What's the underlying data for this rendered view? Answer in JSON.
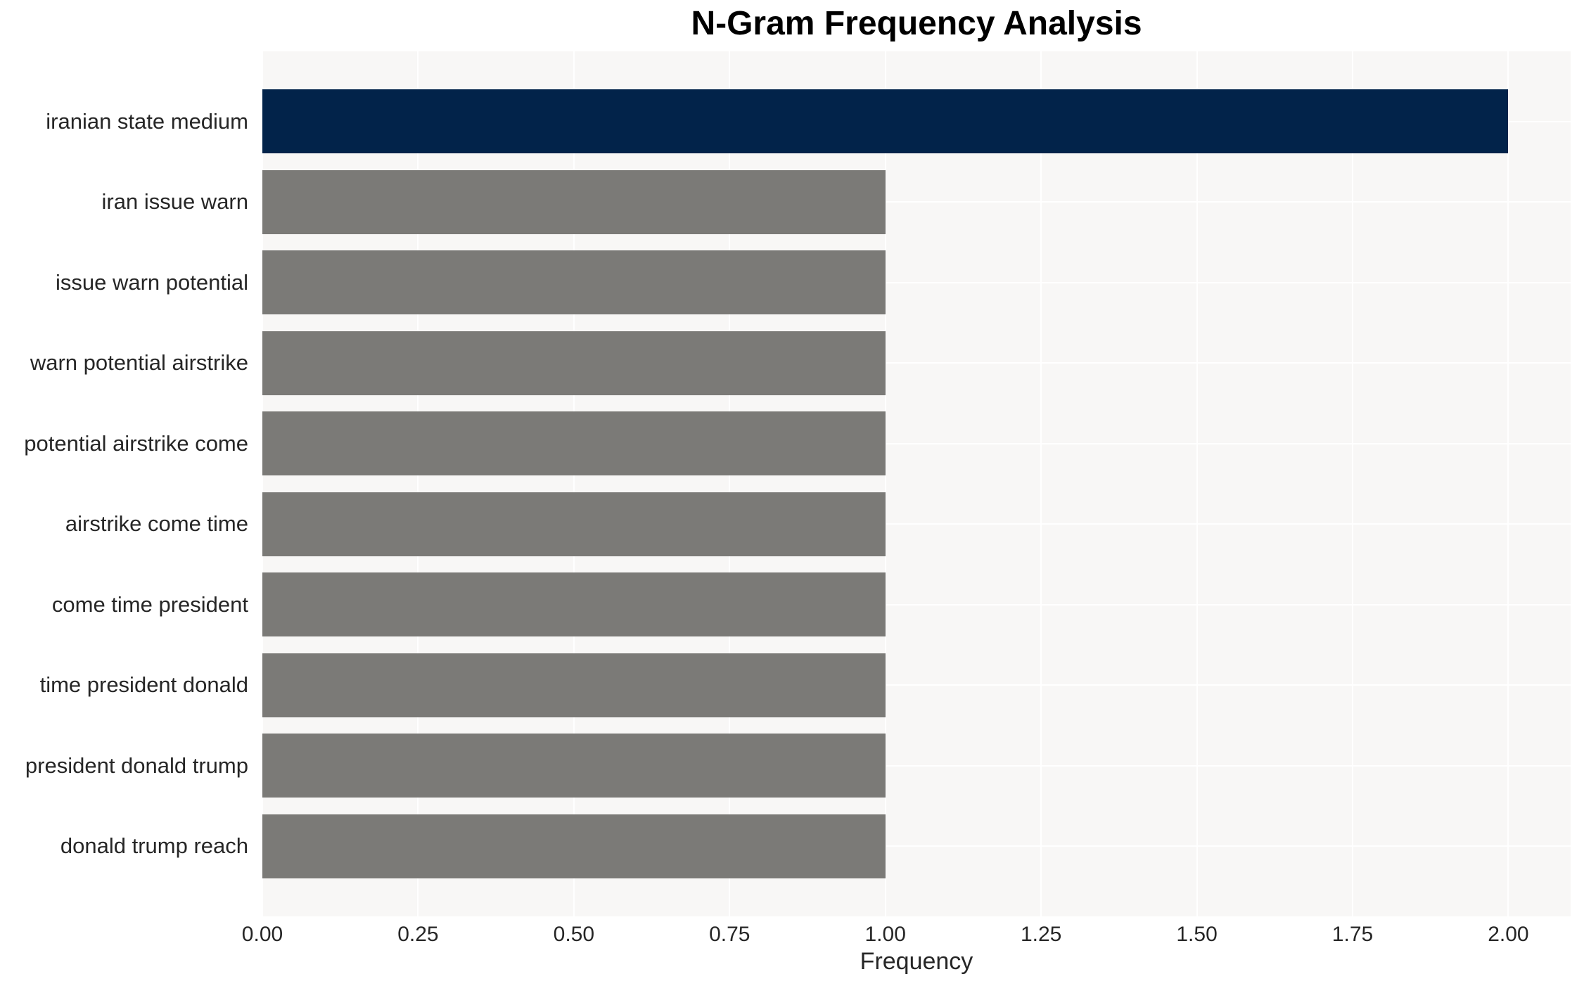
{
  "chart_data": {
    "type": "bar",
    "orientation": "horizontal",
    "title": "N-Gram Frequency Analysis",
    "xlabel": "Frequency",
    "ylabel": "",
    "categories": [
      "iranian state medium",
      "iran issue warn",
      "issue warn potential",
      "warn potential airstrike",
      "potential airstrike come",
      "airstrike come time",
      "come time president",
      "time president donald",
      "president donald trump",
      "donald trump reach"
    ],
    "values": [
      2,
      1,
      1,
      1,
      1,
      1,
      1,
      1,
      1,
      1
    ],
    "bar_colors": [
      "#02234a",
      "#7b7a77",
      "#7b7a77",
      "#7b7a77",
      "#7b7a77",
      "#7b7a77",
      "#7b7a77",
      "#7b7a77",
      "#7b7a77",
      "#7b7a77"
    ],
    "highlight_color": "#02234a",
    "default_bar_color": "#7b7a77",
    "xlim": [
      0,
      2.1
    ],
    "xticks": [
      0,
      0.25,
      0.5,
      0.75,
      1.0,
      1.25,
      1.5,
      1.75,
      2.0
    ],
    "xtick_labels": [
      "0.00",
      "0.25",
      "0.50",
      "0.75",
      "1.00",
      "1.25",
      "1.50",
      "1.75",
      "2.00"
    ],
    "grid": true,
    "grid_color": "#ffffff",
    "plot_bg": "#f8f7f6",
    "fig_bg": "#ffffff",
    "text_color": "#262626",
    "title_color": "#000000",
    "legend": null
  }
}
